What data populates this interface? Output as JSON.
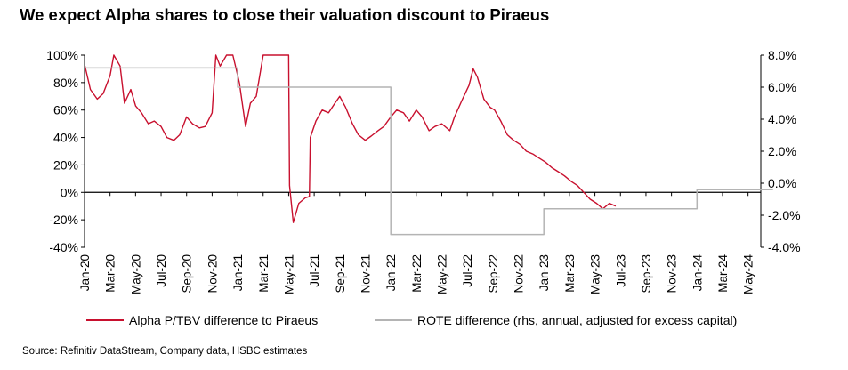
{
  "title": "We expect Alpha shares to close their valuation discount to Piraeus",
  "source": "Source: Refinitiv DataStream, Company data, HSBC estimates",
  "chart_data": {
    "type": "line",
    "title": "We expect Alpha shares to close their valuation discount to Piraeus",
    "left_axis": {
      "ticks": [
        "-40%",
        "-20%",
        "0%",
        "20%",
        "40%",
        "60%",
        "80%",
        "100%"
      ],
      "min": -40,
      "max": 100
    },
    "right_axis": {
      "ticks": [
        "-4.0%",
        "-2.0%",
        "0.0%",
        "2.0%",
        "4.0%",
        "6.0%",
        "8.0%"
      ],
      "min": -4,
      "max": 8
    },
    "x_ticks": [
      "Jan-20",
      "Mar-20",
      "May-20",
      "Jul-20",
      "Sep-20",
      "Nov-20",
      "Jan-21",
      "Mar-21",
      "May-21",
      "Jul-21",
      "Sep-21",
      "Nov-21",
      "Jan-22",
      "Mar-22",
      "May-22",
      "Jul-22",
      "Sep-22",
      "Nov-22",
      "Jan-23",
      "Mar-23",
      "May-23",
      "Jul-23",
      "Sep-23",
      "Nov-23",
      "Jan-24",
      "Mar-24",
      "May-24"
    ],
    "x_range": [
      "2020-01",
      "2024-06"
    ],
    "grid": false,
    "legend_position": "bottom",
    "series": [
      {
        "name": "Alpha P/TBV difference to Piraeus",
        "axis": "left",
        "color": "#c8102e",
        "points": [
          [
            "2020-01-02",
            92
          ],
          [
            "2020-01-15",
            75
          ],
          [
            "2020-02-01",
            68
          ],
          [
            "2020-02-15",
            72
          ],
          [
            "2020-03-01",
            85
          ],
          [
            "2020-03-10",
            100
          ],
          [
            "2020-03-25",
            92
          ],
          [
            "2020-04-05",
            65
          ],
          [
            "2020-04-20",
            75
          ],
          [
            "2020-05-01",
            63
          ],
          [
            "2020-05-15",
            58
          ],
          [
            "2020-06-01",
            50
          ],
          [
            "2020-06-15",
            52
          ],
          [
            "2020-07-01",
            48
          ],
          [
            "2020-07-15",
            40
          ],
          [
            "2020-08-01",
            38
          ],
          [
            "2020-08-15",
            42
          ],
          [
            "2020-09-01",
            55
          ],
          [
            "2020-09-15",
            50
          ],
          [
            "2020-10-01",
            47
          ],
          [
            "2020-10-15",
            48
          ],
          [
            "2020-11-01",
            58
          ],
          [
            "2020-11-10",
            100
          ],
          [
            "2020-11-20",
            92
          ],
          [
            "2020-12-05",
            100
          ],
          [
            "2020-12-20",
            100
          ],
          [
            "2021-01-05",
            80
          ],
          [
            "2021-01-20",
            48
          ],
          [
            "2021-02-01",
            65
          ],
          [
            "2021-02-15",
            70
          ],
          [
            "2021-03-01",
            100
          ],
          [
            "2021-03-10",
            100
          ],
          [
            "2021-05-01",
            100
          ],
          [
            "2021-05-03",
            5
          ],
          [
            "2021-05-12",
            -22
          ],
          [
            "2021-05-25",
            -8
          ],
          [
            "2021-06-10",
            -4
          ],
          [
            "2021-06-20",
            -3
          ],
          [
            "2021-06-22",
            40
          ],
          [
            "2021-07-05",
            52
          ],
          [
            "2021-07-20",
            60
          ],
          [
            "2021-08-05",
            58
          ],
          [
            "2021-08-20",
            65
          ],
          [
            "2021-09-01",
            70
          ],
          [
            "2021-09-15",
            62
          ],
          [
            "2021-10-01",
            50
          ],
          [
            "2021-10-15",
            42
          ],
          [
            "2021-11-01",
            38
          ],
          [
            "2021-11-15",
            41
          ],
          [
            "2021-12-01",
            45
          ],
          [
            "2021-12-15",
            48
          ],
          [
            "2022-01-01",
            55
          ],
          [
            "2022-01-15",
            60
          ],
          [
            "2022-02-01",
            58
          ],
          [
            "2022-02-15",
            52
          ],
          [
            "2022-03-01",
            60
          ],
          [
            "2022-03-15",
            55
          ],
          [
            "2022-04-01",
            45
          ],
          [
            "2022-04-15",
            48
          ],
          [
            "2022-05-01",
            50
          ],
          [
            "2022-05-20",
            45
          ],
          [
            "2022-06-01",
            55
          ],
          [
            "2022-06-20",
            68
          ],
          [
            "2022-07-05",
            78
          ],
          [
            "2022-07-15",
            90
          ],
          [
            "2022-07-25",
            84
          ],
          [
            "2022-08-10",
            68
          ],
          [
            "2022-08-25",
            62
          ],
          [
            "2022-09-05",
            60
          ],
          [
            "2022-09-20",
            52
          ],
          [
            "2022-10-05",
            42
          ],
          [
            "2022-10-20",
            38
          ],
          [
            "2022-11-05",
            35
          ],
          [
            "2022-11-20",
            30
          ],
          [
            "2022-12-05",
            28
          ],
          [
            "2022-12-20",
            25
          ],
          [
            "2023-01-05",
            22
          ],
          [
            "2023-01-20",
            18
          ],
          [
            "2023-02-05",
            15
          ],
          [
            "2023-02-20",
            12
          ],
          [
            "2023-03-05",
            8
          ],
          [
            "2023-03-20",
            5
          ],
          [
            "2023-04-05",
            0
          ],
          [
            "2023-04-20",
            -5
          ],
          [
            "2023-05-05",
            -8
          ],
          [
            "2023-05-20",
            -12
          ],
          [
            "2023-06-05",
            -8
          ],
          [
            "2023-06-20",
            -10
          ]
        ]
      },
      {
        "name": "ROTE difference (rhs, annual, adjusted for excess capital)",
        "axis": "right",
        "color": "#b4b4b4",
        "points": [
          [
            "2020-01-01",
            7.2
          ],
          [
            "2021-01-01",
            7.2
          ],
          [
            "2021-01-01",
            6.0
          ],
          [
            "2022-01-01",
            6.0
          ],
          [
            "2022-01-01",
            -3.2
          ],
          [
            "2023-01-01",
            -3.2
          ],
          [
            "2023-01-01",
            -1.6
          ],
          [
            "2024-01-01",
            -1.6
          ],
          [
            "2024-01-01",
            -0.4
          ],
          [
            "2024-06-30",
            -0.4
          ]
        ]
      }
    ]
  }
}
